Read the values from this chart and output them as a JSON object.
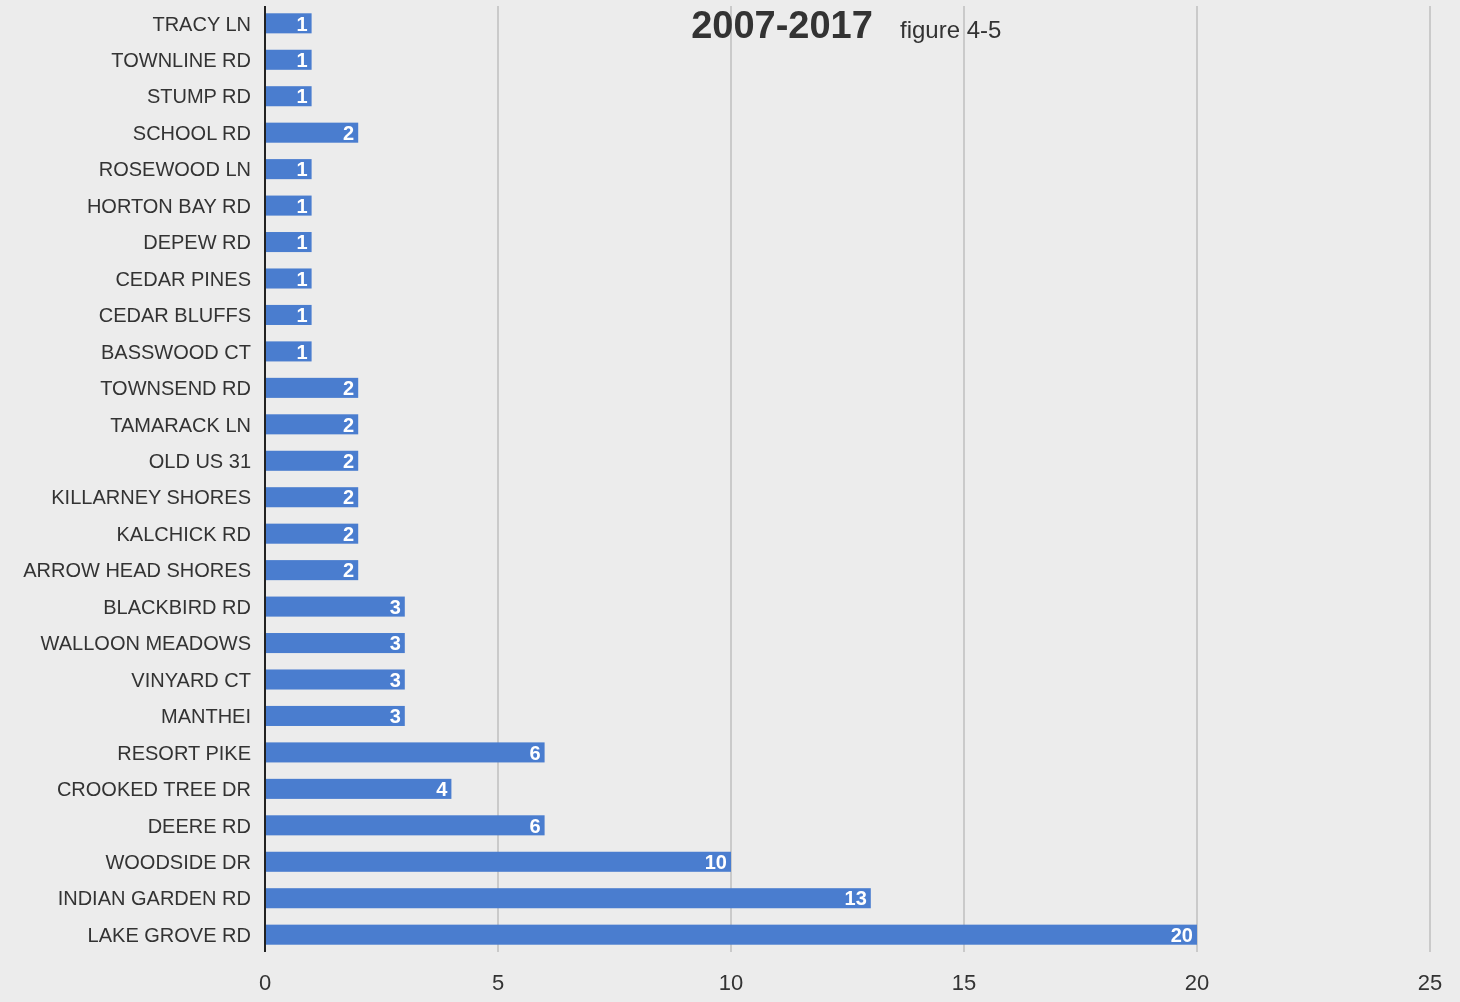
{
  "chart_data": {
    "type": "bar",
    "orientation": "horizontal",
    "title": "2007-2017",
    "annotations": [
      "figure 4-5"
    ],
    "categories": [
      "TRACY LN",
      "TOWNLINE RD",
      "STUMP  RD",
      "SCHOOL RD",
      "ROSEWOOD LN",
      "HORTON BAY RD",
      "DEPEW RD",
      "CEDAR PINES",
      "CEDAR BLUFFS",
      "BASSWOOD CT",
      "TOWNSEND RD",
      "TAMARACK LN",
      "OLD US 31",
      "KILLARNEY SHORES",
      "KALCHICK RD",
      "ARROW HEAD SHORES",
      "BLACKBIRD RD",
      "WALLOON MEADOWS",
      "VINYARD CT",
      "MANTHEI",
      "RESORT PIKE",
      "CROOKED TREE DR",
      "DEERE RD",
      "WOODSIDE DR",
      "INDIAN GARDEN RD",
      "LAKE GROVE RD"
    ],
    "values": [
      1,
      1,
      1,
      2,
      1,
      1,
      1,
      1,
      1,
      1,
      2,
      2,
      2,
      2,
      2,
      2,
      3,
      3,
      3,
      3,
      6,
      4,
      6,
      10,
      13,
      20
    ],
    "color": "#4a7dcf",
    "xlim": [
      0,
      25
    ],
    "xticks": [
      0,
      5,
      10,
      15,
      20,
      25
    ],
    "grid": "x",
    "data_labels": true
  }
}
